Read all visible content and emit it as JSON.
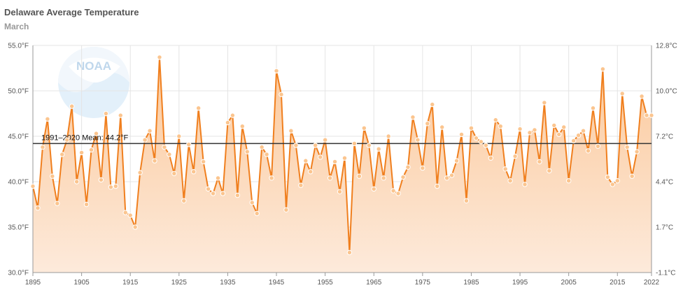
{
  "header": {
    "title": "Delaware Average Temperature",
    "subtitle": "March"
  },
  "colors": {
    "line": "#f07f1e",
    "marker_fill": "#fbc58f",
    "area_top": "#fbc89a",
    "area_bottom": "#fdeadb",
    "mean_line": "#333333",
    "grid": "#e4e4e4"
  },
  "chart_data": {
    "type": "line",
    "title": "Delaware Average Temperature",
    "subtitle": "March",
    "x_range": [
      1895,
      2022
    ],
    "ylim": [
      30,
      55
    ],
    "y_ticks": [
      30,
      35,
      40,
      45,
      50,
      55
    ],
    "y_tick_labels": [
      "30.0°F",
      "35.0°F",
      "40.0°F",
      "45.0°F",
      "50.0°F",
      "55.0°F"
    ],
    "y2_tick_labels": [
      "-1.1°C",
      "1.7°C",
      "4.4°C",
      "7.2°C",
      "10.0°C",
      "12.8°C"
    ],
    "x_ticks": [
      1895,
      1905,
      1915,
      1925,
      1935,
      1945,
      1955,
      1965,
      1975,
      1985,
      1995,
      2005,
      2015,
      2022
    ],
    "mean": {
      "label": "1991–2020 Mean: 44.2°F",
      "value": 44.2
    },
    "grid": true,
    "series": [
      {
        "x": [
          1895,
          1896,
          1897,
          1898,
          1899,
          1900,
          1901,
          1902,
          1903,
          1904,
          1905,
          1906,
          1907,
          1908,
          1909,
          1910,
          1911,
          1912,
          1913,
          1914,
          1915,
          1916,
          1917,
          1918,
          1919,
          1920,
          1921,
          1922,
          1923,
          1924,
          1925,
          1926,
          1927,
          1928,
          1929,
          1930,
          1931,
          1932,
          1933,
          1934,
          1935,
          1936,
          1937,
          1938,
          1939,
          1940,
          1941,
          1942,
          1943,
          1944,
          1945,
          1946,
          1947,
          1948,
          1949,
          1950,
          1951,
          1952,
          1953,
          1954,
          1955,
          1956,
          1957,
          1958,
          1959,
          1960,
          1961,
          1962,
          1963,
          1964,
          1965,
          1966,
          1967,
          1968,
          1969,
          1970,
          1971,
          1972,
          1973,
          1974,
          1975,
          1976,
          1977,
          1978,
          1979,
          1980,
          1981,
          1982,
          1983,
          1984,
          1985,
          1986,
          1987,
          1988,
          1989,
          1990,
          1991,
          1992,
          1993,
          1994,
          1995,
          1996,
          1997,
          1998,
          1999,
          2000,
          2001,
          2002,
          2003,
          2004,
          2005,
          2006,
          2007,
          2008,
          2009,
          2010,
          2011,
          2012,
          2013,
          2014,
          2015,
          2016,
          2017,
          2018,
          2019,
          2020,
          2021,
          2022
        ],
        "values": [
          39.5,
          37.1,
          43.8,
          46.9,
          40.6,
          37.6,
          43.0,
          44.6,
          48.3,
          40.0,
          43.2,
          37.5,
          43.5,
          45.3,
          40.2,
          47.5,
          39.4,
          39.5,
          47.3,
          36.6,
          36.3,
          35.0,
          41.0,
          44.6,
          45.6,
          42.3,
          53.7,
          43.8,
          43.0,
          40.9,
          45.0,
          37.9,
          44.1,
          41.1,
          48.1,
          42.2,
          39.2,
          38.7,
          40.4,
          38.7,
          46.5,
          47.3,
          38.5,
          46.1,
          43.3,
          37.7,
          36.5,
          43.8,
          43.0,
          40.4,
          52.2,
          49.6,
          36.9,
          45.6,
          44.0,
          39.6,
          42.3,
          41.1,
          44.0,
          42.7,
          44.6,
          40.4,
          42.2,
          38.9,
          42.6,
          32.2,
          44.2,
          40.6,
          45.9,
          44.0,
          39.2,
          43.6,
          40.4,
          45.0,
          39.0,
          38.7,
          40.5,
          41.6,
          47.1,
          44.6,
          41.5,
          46.4,
          48.5,
          39.5,
          46.0,
          40.4,
          40.7,
          42.3,
          45.2,
          37.9,
          45.9,
          44.8,
          44.4,
          44.0,
          42.6,
          46.8,
          46.1,
          41.4,
          40.1,
          42.8,
          45.8,
          39.7,
          45.4,
          45.7,
          42.2,
          48.7,
          41.2,
          46.2,
          45.2,
          46.0,
          40.1,
          44.5,
          45.1,
          45.6,
          43.4,
          48.1,
          43.9,
          52.4,
          40.5,
          39.7,
          40.1,
          49.7,
          43.8,
          40.6,
          43.3,
          49.4,
          47.3,
          47.3
        ]
      }
    ]
  }
}
